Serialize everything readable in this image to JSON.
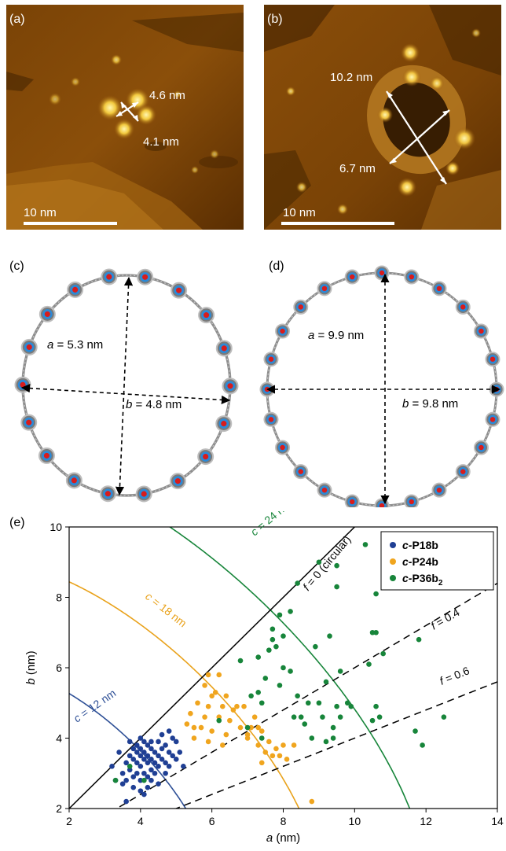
{
  "panels": {
    "a": {
      "label": "(a)",
      "dim1": "4.6 nm",
      "dim2": "4.1 nm",
      "scalebar": "10 nm"
    },
    "b": {
      "label": "(b)",
      "dim1": "10.2 nm",
      "dim2": "6.7 nm",
      "scalebar": "10 nm"
    },
    "c": {
      "label": "(c)",
      "a_prefix": "a",
      "a_value": " = 5.3 nm",
      "b_prefix": "b",
      "b_value": " = 4.8 nm"
    },
    "d": {
      "label": "(d)",
      "a_prefix": "a",
      "a_value": " = 9.9 nm",
      "b_prefix": "b",
      "b_value": " = 9.8 nm"
    },
    "e": {
      "label": "(e)"
    }
  },
  "colors": {
    "afm_dark": "#3a1e00",
    "afm_mid": "#8a4e0a",
    "afm_bright": "#f5d24a",
    "carbon": "#7a7a7a",
    "nitrogen": "#2a8ad8",
    "zinc": "#d81c1c",
    "blue_series": "#1f3f94",
    "orange_series": "#f0a51e",
    "green_series": "#17853a"
  },
  "chart_data": {
    "type": "scatter",
    "xlabel": "a (nm)",
    "ylabel": "b (nm)",
    "xlim": [
      2,
      14
    ],
    "ylim": [
      2,
      10
    ],
    "xticks": [
      2,
      4,
      6,
      8,
      10,
      12,
      14
    ],
    "yticks": [
      2,
      4,
      6,
      8,
      10
    ],
    "legend_position": "top-right",
    "series": [
      {
        "name": "c-P18b",
        "name_prefix": "c-",
        "name_main": "P18b",
        "name_sub": "",
        "color": "#1f3f94",
        "points": [
          [
            3.2,
            3.2
          ],
          [
            3.3,
            2.8
          ],
          [
            3.4,
            3.6
          ],
          [
            3.5,
            3.0
          ],
          [
            3.5,
            2.7
          ],
          [
            3.6,
            3.3
          ],
          [
            3.6,
            2.2
          ],
          [
            3.7,
            3.9
          ],
          [
            3.7,
            3.5
          ],
          [
            3.7,
            3.1
          ],
          [
            3.8,
            3.7
          ],
          [
            3.8,
            3.4
          ],
          [
            3.8,
            2.9
          ],
          [
            3.8,
            2.6
          ],
          [
            3.9,
            3.8
          ],
          [
            3.9,
            3.6
          ],
          [
            3.9,
            3.3
          ],
          [
            3.9,
            3.0
          ],
          [
            4.0,
            4.0
          ],
          [
            4.0,
            3.7
          ],
          [
            4.0,
            3.5
          ],
          [
            4.0,
            3.2
          ],
          [
            4.0,
            2.8
          ],
          [
            4.0,
            2.5
          ],
          [
            4.1,
            3.9
          ],
          [
            4.1,
            3.6
          ],
          [
            4.1,
            3.4
          ],
          [
            4.1,
            3.0
          ],
          [
            4.2,
            3.8
          ],
          [
            4.2,
            3.5
          ],
          [
            4.2,
            3.3
          ],
          [
            4.2,
            2.9
          ],
          [
            4.2,
            2.6
          ],
          [
            4.3,
            3.7
          ],
          [
            4.3,
            3.4
          ],
          [
            4.3,
            3.1
          ],
          [
            4.3,
            2.8
          ],
          [
            4.4,
            3.6
          ],
          [
            4.4,
            3.3
          ],
          [
            4.4,
            3.0
          ],
          [
            4.5,
            3.9
          ],
          [
            4.5,
            3.5
          ],
          [
            4.5,
            3.2
          ],
          [
            4.5,
            2.7
          ],
          [
            4.6,
            4.1
          ],
          [
            4.6,
            3.7
          ],
          [
            4.6,
            3.4
          ],
          [
            4.7,
            3.8
          ],
          [
            4.7,
            3.3
          ],
          [
            4.7,
            3.0
          ],
          [
            4.8,
            4.2
          ],
          [
            4.8,
            3.6
          ],
          [
            4.8,
            3.2
          ],
          [
            4.9,
            3.5
          ],
          [
            5.0,
            3.9
          ],
          [
            5.0,
            3.4
          ],
          [
            5.1,
            3.6
          ],
          [
            5.2,
            3.2
          ],
          [
            4.9,
            4.0
          ],
          [
            4.3,
            3.9
          ],
          [
            3.6,
            2.8
          ],
          [
            4.1,
            2.4
          ]
        ]
      },
      {
        "name": "c-P24b",
        "name_prefix": "c-",
        "name_main": "P24b",
        "name_sub": "",
        "color": "#f0a51e",
        "points": [
          [
            5.9,
            5.8
          ],
          [
            6.2,
            5.8
          ],
          [
            5.8,
            5.5
          ],
          [
            6.1,
            5.3
          ],
          [
            6.4,
            5.2
          ],
          [
            5.6,
            5.0
          ],
          [
            5.9,
            4.9
          ],
          [
            6.3,
            4.9
          ],
          [
            6.6,
            4.8
          ],
          [
            6.9,
            4.9
          ],
          [
            5.4,
            4.7
          ],
          [
            5.8,
            4.6
          ],
          [
            6.2,
            4.6
          ],
          [
            6.5,
            4.5
          ],
          [
            7.2,
            4.6
          ],
          [
            5.3,
            4.4
          ],
          [
            5.7,
            4.3
          ],
          [
            6.0,
            4.2
          ],
          [
            6.4,
            4.1
          ],
          [
            6.8,
            4.3
          ],
          [
            7.1,
            4.3
          ],
          [
            7.4,
            4.2
          ],
          [
            5.5,
            4.0
          ],
          [
            5.9,
            3.9
          ],
          [
            6.3,
            3.8
          ],
          [
            7.0,
            4.0
          ],
          [
            7.3,
            3.8
          ],
          [
            7.6,
            3.9
          ],
          [
            7.8,
            3.7
          ],
          [
            8.0,
            3.8
          ],
          [
            7.5,
            3.6
          ],
          [
            7.7,
            3.5
          ],
          [
            7.9,
            3.5
          ],
          [
            8.1,
            3.4
          ],
          [
            8.3,
            3.8
          ],
          [
            7.4,
            3.3
          ],
          [
            7.3,
            4.3
          ],
          [
            6.0,
            5.2
          ],
          [
            6.7,
            4.9
          ],
          [
            7.0,
            4.1
          ],
          [
            5.5,
            4.3
          ],
          [
            8.8,
            2.2
          ]
        ]
      },
      {
        "name": "c-P36b2",
        "name_prefix": "c-",
        "name_main": "P36b",
        "name_sub": "2",
        "color": "#17853a",
        "points": [
          [
            3.3,
            2.8
          ],
          [
            3.7,
            3.2
          ],
          [
            4.1,
            2.8
          ],
          [
            7.0,
            4.3
          ],
          [
            7.1,
            5.2
          ],
          [
            7.3,
            5.3
          ],
          [
            7.4,
            5.0
          ],
          [
            7.5,
            5.7
          ],
          [
            7.6,
            6.5
          ],
          [
            7.7,
            6.8
          ],
          [
            7.7,
            7.1
          ],
          [
            7.8,
            6.6
          ],
          [
            7.9,
            7.5
          ],
          [
            8.0,
            6.9
          ],
          [
            8.0,
            6.0
          ],
          [
            7.9,
            5.5
          ],
          [
            8.2,
            5.9
          ],
          [
            8.4,
            5.2
          ],
          [
            8.5,
            4.6
          ],
          [
            8.6,
            4.4
          ],
          [
            8.8,
            4.0
          ],
          [
            9.0,
            5.0
          ],
          [
            9.1,
            4.6
          ],
          [
            9.2,
            3.9
          ],
          [
            9.4,
            4.3
          ],
          [
            9.5,
            4.9
          ],
          [
            9.2,
            5.6
          ],
          [
            8.4,
            8.4
          ],
          [
            8.9,
            6.6
          ],
          [
            9.3,
            6.9
          ],
          [
            9.6,
            5.9
          ],
          [
            9.8,
            5.0
          ],
          [
            9.0,
            9.0
          ],
          [
            9.5,
            8.9
          ],
          [
            9.5,
            8.3
          ],
          [
            9.9,
            4.9
          ],
          [
            10.3,
            9.5
          ],
          [
            10.4,
            6.1
          ],
          [
            10.6,
            8.1
          ],
          [
            10.6,
            7.0
          ],
          [
            10.6,
            4.9
          ],
          [
            10.7,
            4.6
          ],
          [
            10.8,
            6.4
          ],
          [
            11.7,
            4.2
          ],
          [
            11.8,
            6.8
          ],
          [
            11.9,
            3.8
          ],
          [
            12.5,
            4.6
          ],
          [
            7.4,
            4.0
          ],
          [
            8.3,
            4.6
          ],
          [
            10.5,
            7.0
          ],
          [
            7.3,
            6.3
          ],
          [
            6.8,
            6.2
          ],
          [
            8.2,
            7.6
          ],
          [
            9.4,
            4.0
          ],
          [
            8.7,
            5.0
          ],
          [
            9.6,
            4.6
          ],
          [
            10.5,
            4.5
          ],
          [
            6.2,
            4.5
          ]
        ]
      }
    ],
    "curves": [
      {
        "label_prefix": "c",
        "label_value": " = 12 nm",
        "color": "#2d4f96"
      },
      {
        "label_prefix": "c",
        "label_value": " = 18 nm",
        "color": "#e9a21b"
      },
      {
        "label_prefix": "c",
        "label_value": " = 24 nm",
        "color": "#17853a"
      }
    ],
    "lines": [
      {
        "label_prefix": "f",
        "label_value": " = 0 (circular)",
        "style": "solid",
        "slope": 1.0
      },
      {
        "label_prefix": "f",
        "label_value": " = 0.4",
        "style": "dashed",
        "slope": 0.6
      },
      {
        "label_prefix": "f",
        "label_value": " = 0.6",
        "style": "dashed",
        "slope": 0.4
      }
    ]
  }
}
